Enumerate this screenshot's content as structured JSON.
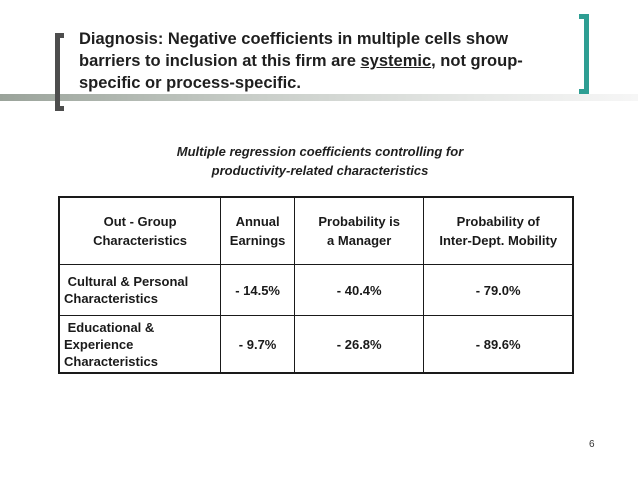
{
  "slide": {
    "title_part1": "Diagnosis:  Negative coefficients in multiple cells show barriers to inclusion at this firm are ",
    "title_underlined": "systemic",
    "title_part2": ", not group-specific or process-specific.",
    "subtitle_line1": "Multiple regression coefficients controlling for",
    "subtitle_line2": "productivity-related characteristics",
    "page_number": "6",
    "accent_color": "#2e9e93"
  },
  "table": {
    "headers": [
      {
        "line1": "Out - Group",
        "line2": "Characteristics"
      },
      {
        "line1": "Annual",
        "line2": "Earnings"
      },
      {
        "line1": "Probability is",
        "line2": "a Manager"
      },
      {
        "line1": "Probability of",
        "line2": "Inter-Dept. Mobility"
      }
    ],
    "rows": [
      {
        "label_lines": [
          " Cultural & Personal",
          "Characteristics"
        ],
        "earnings": "- 14.5%",
        "manager": "- 40.4%",
        "mobility": "- 79.0%"
      },
      {
        "label_lines": [
          " Educational &",
          "Experience",
          "Characteristics"
        ],
        "earnings": "- 9.7%",
        "manager": "- 26.8%",
        "mobility": "- 89.6%"
      }
    ]
  }
}
